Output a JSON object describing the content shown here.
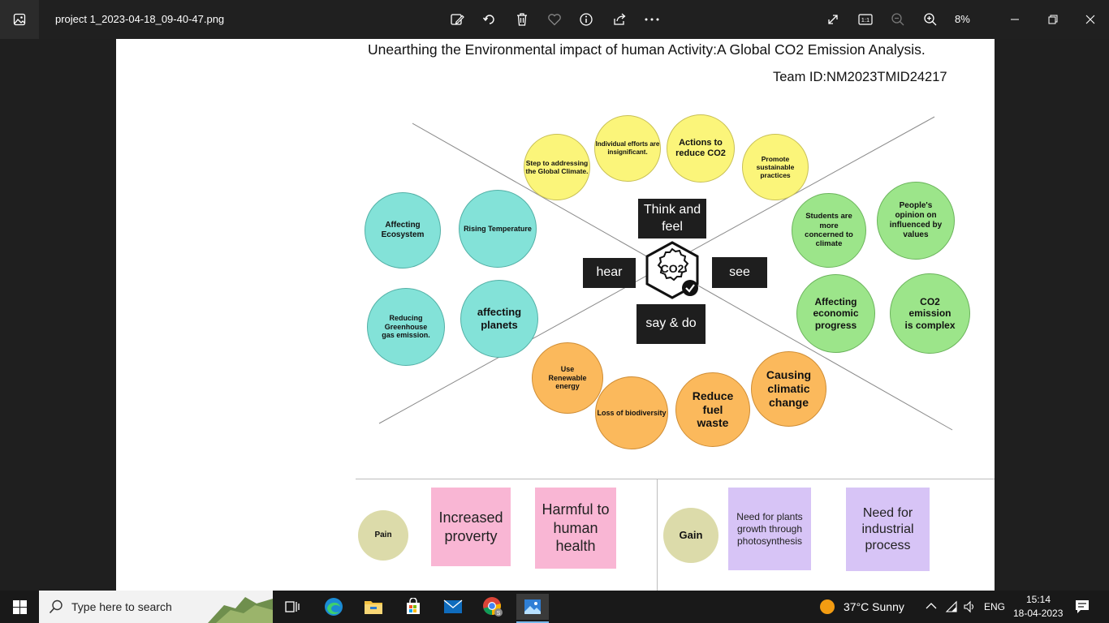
{
  "window": {
    "file_name": "project 1_2023-04-18_09-40-47.png",
    "zoom_level": "8%",
    "toolbar_icons": [
      "edit-image-icon",
      "rotate-icon",
      "delete-icon",
      "favorite-icon",
      "info-icon",
      "share-icon",
      "more-icon"
    ],
    "view_icons": [
      "fullscreen-icon",
      "actual-size-icon",
      "zoom-out-icon",
      "zoom-in-icon"
    ],
    "controls": [
      "minimize-icon",
      "restore-icon",
      "close-icon"
    ]
  },
  "canvas": {
    "title": "Unearthing the Environmental impact of human Activity:A Global CO2 Emission Analysis.",
    "team_id": "Team ID:NM2023TMID24217",
    "quadrant_labels": {
      "think_feel": "Think and feel",
      "hear": "hear",
      "see": "see",
      "say_do": "say & do"
    },
    "center_badge": "CO2",
    "think_feel_notes": [
      "Step to addressing the Global Climate.",
      "Individual efforts are insignificant.",
      "Actions to reduce CO2",
      "Promote sustainable practices"
    ],
    "hear_notes": [
      "Affecting Ecosystem",
      "Rising Temperature",
      "Reducing Greenhouse gas emission.",
      "affecting planets"
    ],
    "see_notes": [
      "Students are more concerned to climate",
      "People's opinion on influenced by values",
      "Affecting economic progress",
      "CO2 emission is complex"
    ],
    "say_do_notes": [
      "Use Renewable energy",
      "Loss of biodiversity",
      "Reduce fuel waste",
      "Causing climatic change"
    ],
    "pain": {
      "label": "Pain",
      "items": [
        "Increased proverty",
        "Harmful to human health"
      ]
    },
    "gain": {
      "label": "Gain",
      "items": [
        "Need for plants growth through photosynthesis",
        "Need for industrial process"
      ]
    },
    "colors": {
      "yellow": "#fbf57a",
      "teal": "#83e2d8",
      "green": "#9ce58a",
      "orange": "#fbb95c",
      "pink": "#f9b6d4",
      "lavender": "#d7c4f6",
      "pain_gain": "#dcdbaa"
    }
  },
  "taskbar": {
    "search_placeholder": "Type here to search",
    "apps": [
      "task-view-icon",
      "edge-icon",
      "file-explorer-icon",
      "store-icon",
      "mail-icon",
      "chrome-icon",
      "photos-icon"
    ],
    "weather": "37°C  Sunny",
    "language": "ENG",
    "time": "15:14",
    "date": "18-04-2023"
  }
}
